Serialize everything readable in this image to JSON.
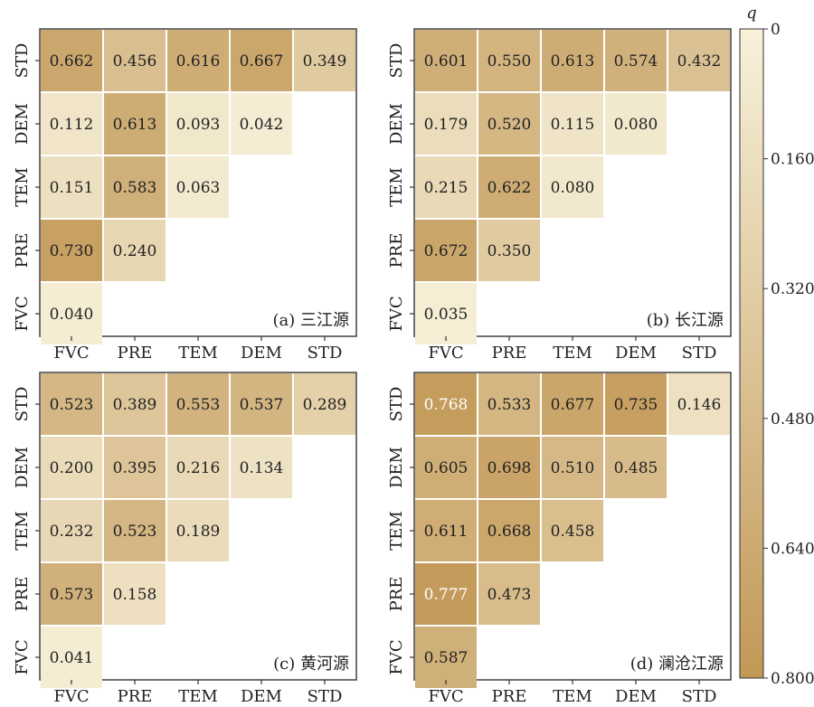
{
  "chart_data": {
    "type": "heatmap",
    "variables": [
      "FVC",
      "PRE",
      "TEM",
      "DEM",
      "STD"
    ],
    "colorbar": {
      "title": "q",
      "range": [
        0,
        0.8
      ],
      "ticks": [
        "0",
        "0.160",
        "0.320",
        "0.480",
        "0.640",
        "0.800"
      ],
      "colors": [
        "#f7f1da",
        "#c29856"
      ]
    },
    "panels": [
      {
        "label": "(a) 三江源",
        "matrix": [
          [
            0.04
          ],
          [
            0.73,
            0.24
          ],
          [
            0.151,
            0.583,
            0.063
          ],
          [
            0.112,
            0.613,
            0.093,
            0.042
          ],
          [
            0.662,
            0.456,
            0.616,
            0.667,
            0.349
          ]
        ],
        "display": [
          [
            "0.040"
          ],
          [
            "0.730",
            "0.240"
          ],
          [
            "0.151",
            "0.583",
            "0.063"
          ],
          [
            "0.112",
            "0.613",
            "0.093",
            "0.042"
          ],
          [
            "0.662",
            "0.456",
            "0.616",
            "0.667",
            "0.349"
          ]
        ]
      },
      {
        "label": "(b) 长江源",
        "matrix": [
          [
            0.035
          ],
          [
            0.672,
            0.35
          ],
          [
            0.215,
            0.622,
            0.08
          ],
          [
            0.179,
            0.52,
            0.115,
            0.08
          ],
          [
            0.601,
            0.55,
            0.613,
            0.574,
            0.432
          ]
        ],
        "display": [
          [
            "0.035"
          ],
          [
            "0.672",
            "0.350"
          ],
          [
            "0.215",
            "0.622",
            "0.080"
          ],
          [
            "0.179",
            "0.520",
            "0.115",
            "0.080"
          ],
          [
            "0.601",
            "0.550",
            "0.613",
            "0.574",
            "0.432"
          ]
        ]
      },
      {
        "label": "(c) 黄河源",
        "matrix": [
          [
            0.041
          ],
          [
            0.573,
            0.158
          ],
          [
            0.232,
            0.523,
            0.189
          ],
          [
            0.2,
            0.395,
            0.216,
            0.134
          ],
          [
            0.523,
            0.389,
            0.553,
            0.537,
            0.289
          ]
        ],
        "display": [
          [
            "0.041"
          ],
          [
            "0.573",
            "0.158"
          ],
          [
            "0.232",
            "0.523",
            "0.189"
          ],
          [
            "0.200",
            "0.395",
            "0.216",
            "0.134"
          ],
          [
            "0.523",
            "0.389",
            "0.553",
            "0.537",
            "0.289"
          ]
        ]
      },
      {
        "label": "(d) 澜沧江源",
        "matrix": [
          [
            0.587
          ],
          [
            0.777,
            0.473
          ],
          [
            0.611,
            0.668,
            0.458
          ],
          [
            0.605,
            0.698,
            0.51,
            0.485
          ],
          [
            0.768,
            0.533,
            0.677,
            0.735,
            0.146
          ]
        ],
        "display": [
          [
            "0.587"
          ],
          [
            "0.777",
            "0.473"
          ],
          [
            "0.611",
            "0.668",
            "0.458"
          ],
          [
            "0.605",
            "0.698",
            "0.510",
            "0.485"
          ],
          [
            "0.768",
            "0.533",
            "0.677",
            "0.735",
            "0.146"
          ]
        ]
      }
    ]
  }
}
